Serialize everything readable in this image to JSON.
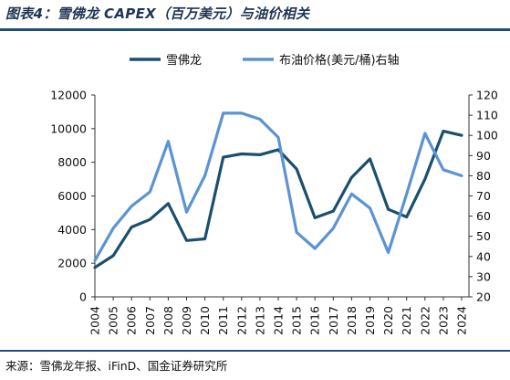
{
  "title": "图表4：雪佛龙 CAPEX（百万美元）与油价相关",
  "source": "来源：雪佛龙年报、iFinD、国金证券研究所",
  "chart_data": {
    "type": "line",
    "categories": [
      "2004",
      "2005",
      "2006",
      "2007",
      "2008",
      "2009",
      "2010",
      "2011",
      "2012",
      "2013",
      "2014",
      "2015",
      "2016",
      "2017",
      "2018",
      "2019",
      "2020",
      "2021",
      "2022",
      "2023",
      "2024"
    ],
    "series": [
      {
        "name": "雪佛龙",
        "axis": "left",
        "color": "#1b4f6e",
        "values": [
          1750,
          2450,
          4150,
          4600,
          5550,
          3350,
          3450,
          8300,
          8500,
          8450,
          8750,
          7600,
          4700,
          5100,
          7100,
          8200,
          5200,
          4750,
          7000,
          9850,
          9600
        ]
      },
      {
        "name": "布油价格(美元/桶)右轴",
        "axis": "right",
        "color": "#5b93d3",
        "values": [
          38,
          54,
          65,
          72,
          97,
          62,
          80,
          111,
          111,
          108,
          99,
          52,
          44,
          54,
          71,
          64,
          42,
          71,
          101,
          83,
          80
        ]
      }
    ],
    "y_left": {
      "min": 0,
      "max": 12000,
      "ticks": [
        0,
        2000,
        4000,
        6000,
        8000,
        10000,
        12000
      ]
    },
    "y_right": {
      "min": 20,
      "max": 120,
      "ticks": [
        20,
        30,
        40,
        50,
        60,
        70,
        80,
        90,
        100,
        110,
        120
      ]
    },
    "legend_position": "top-center",
    "grid": false
  }
}
